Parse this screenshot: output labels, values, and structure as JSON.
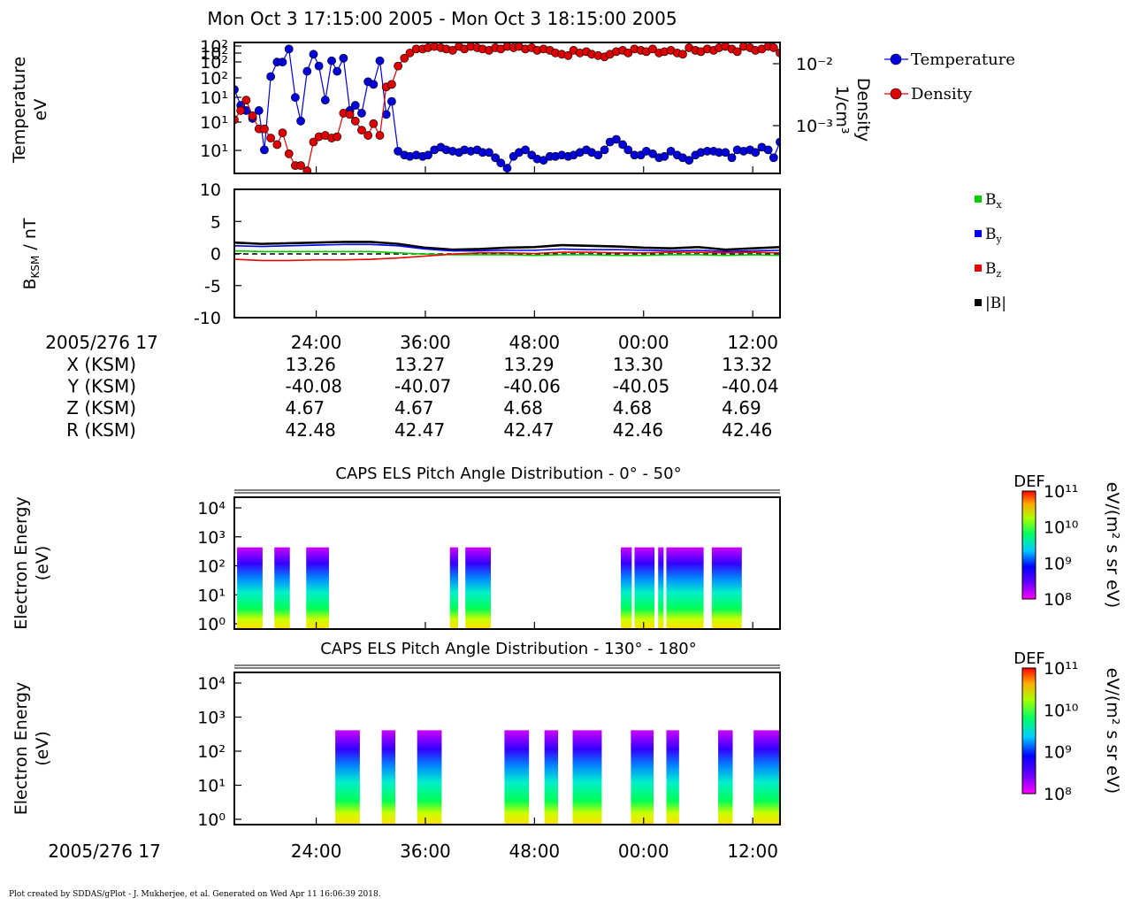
{
  "title": "Mon Oct 3 17:15:00 2005 - Mon Oct 3 18:15:00 2005",
  "footer": "Plot created by SDDAS/gPlot - J. Mukherjee, et al.  Generated on Wed Apr 11 16:06:39 2018.",
  "colors": {
    "temperature": "#0000dd",
    "density": "#dd0000",
    "bx": "#00cc00",
    "by": "#0000ee",
    "bz": "#ee0000",
    "bmag": "#000000"
  },
  "time_axis": {
    "ticks": [
      "24:00",
      "36:00",
      "48:00",
      "00:00",
      "12:00"
    ],
    "tick_minutes": [
      24,
      36,
      48,
      60,
      72
    ],
    "start_minute": 15,
    "end_minute": 75,
    "date_label": "2005/276 17"
  },
  "ephemeris": [
    {
      "label": "X (KSM)",
      "values": [
        "13.26",
        "13.27",
        "13.29",
        "13.30",
        "13.32"
      ]
    },
    {
      "label": "Y (KSM)",
      "values": [
        "-40.08",
        "-40.07",
        "-40.06",
        "-40.05",
        "-40.04"
      ]
    },
    {
      "label": "Z (KSM)",
      "values": [
        "4.67",
        "4.67",
        "4.68",
        "4.68",
        "4.69"
      ]
    },
    {
      "label": "R (KSM)",
      "values": [
        "42.48",
        "42.47",
        "42.47",
        "42.46",
        "42.46"
      ]
    }
  ],
  "chart_data": [
    {
      "type": "scatter",
      "ylabel_lines": [
        "Temperature",
        "eV"
      ],
      "y2label_lines": [
        "Density",
        "1/cm³"
      ],
      "y_ticks": [
        "10²",
        "10²",
        "10²",
        "10²",
        "10¹",
        "10¹",
        "10¹"
      ],
      "y2_ticks": [
        "10⁻²",
        "10⁻³"
      ],
      "legend": [
        "Temperature",
        "Density"
      ],
      "note": "Values are normalized positions within the panel range (0 = bottom, 1 = top).",
      "series": [
        {
          "name": "Temperature",
          "color": "#0000dd",
          "x": [
            15.0,
            15.7,
            16.3,
            17.0,
            17.7,
            18.3,
            19.0,
            19.7,
            20.3,
            21.0,
            21.7,
            22.3,
            23.0,
            23.7,
            24.3,
            25.0,
            25.7,
            26.3,
            27.0,
            27.7,
            28.3,
            29.0,
            29.7,
            30.3,
            31.0,
            31.7,
            32.3,
            33.0,
            33.7,
            34.3,
            35.0,
            35.7,
            36.3,
            37.0,
            37.7,
            38.3,
            39.0,
            39.7,
            40.3,
            41.0,
            41.7,
            42.3,
            43.0,
            43.7,
            44.3,
            45.0,
            45.7,
            46.3,
            47.0,
            47.7,
            48.3,
            49.0,
            49.7,
            50.3,
            51.0,
            51.7,
            52.3,
            53.0,
            53.7,
            54.3,
            55.0,
            55.7,
            56.3,
            57.0,
            57.7,
            58.3,
            59.0,
            59.7,
            60.3,
            61.0,
            61.7,
            62.3,
            63.0,
            63.7,
            64.3,
            65.0,
            65.7,
            66.3,
            67.0,
            67.7,
            68.3,
            69.0,
            69.7,
            70.3,
            71.0,
            71.7,
            72.3,
            73.0,
            73.7,
            74.3,
            75.0
          ],
          "y": [
            0.64,
            0.52,
            0.48,
            0.42,
            0.48,
            0.18,
            0.74,
            0.85,
            0.85,
            0.95,
            0.58,
            0.4,
            0.78,
            0.91,
            0.82,
            0.56,
            0.86,
            0.78,
            0.88,
            0.48,
            0.52,
            0.46,
            0.7,
            0.68,
            0.86,
            0.45,
            0.55,
            0.17,
            0.14,
            0.13,
            0.14,
            0.13,
            0.14,
            0.18,
            0.2,
            0.18,
            0.17,
            0.16,
            0.18,
            0.17,
            0.18,
            0.16,
            0.16,
            0.12,
            0.08,
            0.04,
            0.13,
            0.16,
            0.18,
            0.14,
            0.11,
            0.1,
            0.13,
            0.13,
            0.14,
            0.13,
            0.14,
            0.16,
            0.18,
            0.16,
            0.14,
            0.18,
            0.24,
            0.26,
            0.22,
            0.18,
            0.14,
            0.14,
            0.17,
            0.15,
            0.12,
            0.13,
            0.17,
            0.14,
            0.12,
            0.1,
            0.14,
            0.16,
            0.17,
            0.17,
            0.16,
            0.16,
            0.12,
            0.18,
            0.17,
            0.18,
            0.16,
            0.2,
            0.18,
            0.12,
            0.24
          ]
        },
        {
          "name": "Density",
          "color": "#dd0000",
          "x": [
            15.0,
            15.7,
            16.3,
            17.0,
            17.7,
            18.3,
            19.0,
            19.7,
            20.3,
            21.0,
            21.7,
            22.3,
            23.0,
            23.7,
            24.3,
            25.0,
            25.7,
            26.3,
            27.0,
            27.7,
            28.3,
            29.0,
            29.7,
            30.3,
            31.0,
            31.7,
            32.3,
            33.0,
            33.7,
            34.3,
            35.0,
            35.7,
            36.3,
            37.0,
            37.7,
            38.3,
            39.0,
            39.7,
            40.3,
            41.0,
            41.7,
            42.3,
            43.0,
            43.7,
            44.3,
            45.0,
            45.7,
            46.3,
            47.0,
            47.7,
            48.3,
            49.0,
            49.7,
            50.3,
            51.0,
            51.7,
            52.3,
            53.0,
            53.7,
            54.3,
            55.0,
            55.7,
            56.3,
            57.0,
            57.7,
            58.3,
            59.0,
            59.7,
            60.3,
            61.0,
            61.7,
            62.3,
            63.0,
            63.7,
            64.3,
            65.0,
            65.7,
            66.3,
            67.0,
            67.7,
            68.3,
            69.0,
            69.7,
            70.3,
            71.0,
            71.7,
            72.3,
            73.0,
            73.7,
            74.3,
            75.0
          ],
          "y": [
            0.41,
            0.48,
            0.56,
            0.44,
            0.34,
            0.34,
            0.27,
            0.22,
            0.31,
            0.15,
            0.06,
            0.06,
            0.02,
            0.24,
            0.28,
            0.29,
            0.27,
            0.28,
            0.46,
            0.45,
            0.4,
            0.33,
            0.29,
            0.38,
            0.29,
            0.66,
            0.68,
            0.82,
            0.88,
            0.92,
            0.95,
            0.95,
            0.96,
            0.97,
            0.96,
            0.95,
            0.94,
            0.97,
            0.95,
            0.97,
            0.96,
            0.95,
            0.94,
            0.96,
            0.95,
            0.97,
            0.96,
            0.97,
            0.95,
            0.96,
            0.94,
            0.95,
            0.94,
            0.92,
            0.91,
            0.9,
            0.94,
            0.92,
            0.93,
            0.91,
            0.9,
            0.89,
            0.91,
            0.93,
            0.94,
            0.92,
            0.95,
            0.94,
            0.93,
            0.95,
            0.92,
            0.93,
            0.94,
            0.92,
            0.91,
            0.96,
            0.94,
            0.93,
            0.95,
            0.94,
            0.96,
            0.97,
            0.95,
            0.93,
            0.97,
            0.96,
            0.94,
            0.95,
            0.97,
            0.96,
            0.92
          ]
        }
      ]
    },
    {
      "type": "line",
      "ylabel": "B",
      "ylabel_sub": "KSM",
      "ylabel_rest": " / nT",
      "ylim": [
        -10,
        10
      ],
      "y_ticks": [
        10,
        5,
        0,
        -5,
        -10
      ],
      "legend": [
        {
          "key": "bx",
          "name": "B",
          "sub": "x"
        },
        {
          "key": "by",
          "name": "B",
          "sub": "y"
        },
        {
          "key": "bz",
          "name": "B",
          "sub": "z"
        },
        {
          "key": "bmag",
          "name": "|B|",
          "sub": ""
        }
      ],
      "x": [
        15,
        18,
        21,
        24,
        27,
        30,
        33,
        36,
        39,
        42,
        45,
        48,
        51,
        54,
        57,
        60,
        63,
        66,
        69,
        72,
        75
      ],
      "series": [
        {
          "key": "bmag",
          "color": "#000000",
          "values": [
            1.7,
            1.5,
            1.6,
            1.7,
            1.8,
            1.8,
            1.5,
            0.9,
            0.6,
            0.7,
            0.9,
            1.0,
            1.3,
            1.2,
            1.1,
            0.9,
            0.8,
            1.0,
            0.6,
            0.8,
            1.0
          ]
        },
        {
          "key": "by",
          "color": "#0000ee",
          "values": [
            1.2,
            1.1,
            1.2,
            1.3,
            1.4,
            1.4,
            1.2,
            0.7,
            0.4,
            0.4,
            0.5,
            0.5,
            0.7,
            0.6,
            0.6,
            0.5,
            0.4,
            0.5,
            0.3,
            0.4,
            0.5
          ]
        },
        {
          "key": "bx",
          "color": "#00cc00",
          "values": [
            0.4,
            0.3,
            0.3,
            0.3,
            0.3,
            0.3,
            0.1,
            -0.1,
            -0.2,
            -0.2,
            -0.2,
            -0.3,
            -0.2,
            -0.2,
            -0.3,
            -0.3,
            -0.2,
            -0.2,
            -0.3,
            -0.2,
            -0.3
          ]
        },
        {
          "key": "bz",
          "color": "#ee0000",
          "values": [
            -0.9,
            -1.1,
            -1.1,
            -1.0,
            -1.0,
            -0.9,
            -0.7,
            -0.4,
            -0.1,
            0.1,
            0.1,
            0.0,
            0.2,
            0.2,
            0.1,
            0.1,
            0.2,
            0.2,
            0.1,
            0.2,
            0.1
          ]
        }
      ]
    },
    {
      "type": "heatmap",
      "title": "CAPS ELS Pitch Angle Distribution - 0° - 50°",
      "ylabel_lines": [
        "Electron Energy",
        "(eV)"
      ],
      "y_ticks": [
        "10⁴",
        "10³",
        "10²",
        "10¹",
        "10⁰"
      ],
      "colorbar": {
        "label": "DEF",
        "units": "eV/(m² s sr eV)",
        "ticks": [
          "10¹¹",
          "10¹⁰",
          "10⁹",
          "10⁸"
        ]
      },
      "blocks": [
        [
          15.3,
          18.1
        ],
        [
          19.4,
          21.1
        ],
        [
          22.9,
          25.4
        ],
        [
          38.7,
          39.6
        ],
        [
          40.4,
          43.2
        ],
        [
          57.5,
          58.7
        ],
        [
          59.0,
          61.2
        ],
        [
          61.6,
          62.2
        ],
        [
          62.5,
          66.6
        ],
        [
          67.5,
          70.8
        ]
      ]
    },
    {
      "type": "heatmap",
      "title": "CAPS ELS Pitch Angle Distribution - 130° - 180°",
      "ylabel_lines": [
        "Electron Energy",
        "(eV)"
      ],
      "y_ticks": [
        "10⁴",
        "10³",
        "10²",
        "10¹",
        "10⁰"
      ],
      "colorbar": {
        "label": "DEF",
        "units": "eV/(m² s sr eV)",
        "ticks": [
          "10¹¹",
          "10¹⁰",
          "10⁹",
          "10⁸"
        ]
      },
      "blocks": [
        [
          26.1,
          28.8
        ],
        [
          31.2,
          32.7
        ],
        [
          35.1,
          37.8
        ],
        [
          44.7,
          47.4
        ],
        [
          49.1,
          50.6
        ],
        [
          52.2,
          55.4
        ],
        [
          58.6,
          61.1
        ],
        [
          62.5,
          63.9
        ],
        [
          68.2,
          69.8
        ],
        [
          72.1,
          75.0
        ]
      ]
    }
  ]
}
